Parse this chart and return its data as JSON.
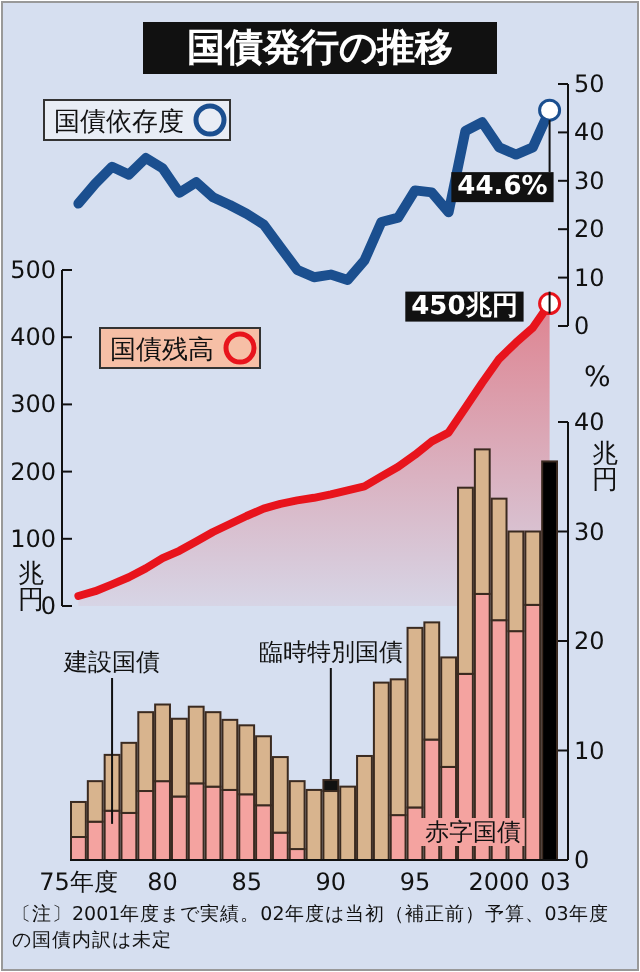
{
  "chart_data": [
    {
      "type": "line",
      "title": "国債発行の推移",
      "categories": [
        null,
        null,
        null,
        null,
        null,
        null,
        null,
        null,
        null,
        null,
        null,
        null,
        null,
        null,
        null,
        null,
        null,
        null,
        null,
        null,
        null,
        null,
        null,
        null,
        null,
        null,
        null,
        null,
        null
      ],
      "series": [
        {
          "name": "国債依存度",
          "color": "#1b4f8f",
          "values": [
            25.3,
            29.4,
            32.9,
            31.3,
            34.7,
            32.6,
            27.5,
            29.7,
            26.6,
            25.0,
            23.2,
            21.0,
            16.3,
            11.6,
            10.1,
            10.6,
            9.5,
            13.5,
            21.5,
            22.4,
            28.0,
            27.6,
            23.5,
            40.3,
            42.1,
            36.9,
            35.4,
            36.9,
            44.6
          ],
          "value_labels": [
            null,
            null,
            null,
            null,
            null,
            null,
            null,
            null,
            null,
            null,
            null,
            null,
            null,
            null,
            null,
            null,
            null,
            null,
            null,
            null,
            null,
            null,
            null,
            null,
            null,
            null,
            null,
            null,
            "44.6%"
          ]
        }
      ],
      "ylim": [
        0,
        50
      ],
      "yticks": [
        0,
        10,
        20,
        30,
        40,
        50
      ],
      "ylabel": "%",
      "tick_labels": "y",
      "legend": "top left"
    },
    {
      "type": "area",
      "categories": [
        null,
        null,
        null,
        null,
        null,
        null,
        null,
        null,
        null,
        null,
        null,
        null,
        null,
        null,
        null,
        null,
        null,
        null,
        null,
        null,
        null,
        null,
        null,
        null,
        null,
        null,
        null,
        null,
        null
      ],
      "series": [
        {
          "name": "国債残高",
          "color": "#e8141c",
          "values": [
            15,
            22,
            32,
            43,
            56,
            71,
            82,
            96,
            110,
            122,
            134,
            145,
            152,
            157,
            161,
            166,
            172,
            178,
            193,
            207,
            225,
            245,
            258,
            295,
            332,
            368,
            392,
            414,
            450
          ],
          "value_labels": [
            null,
            null,
            null,
            null,
            null,
            null,
            null,
            null,
            null,
            null,
            null,
            null,
            null,
            null,
            null,
            null,
            null,
            null,
            null,
            null,
            null,
            null,
            null,
            null,
            null,
            null,
            null,
            null,
            "450兆円"
          ]
        }
      ],
      "ylim": [
        0,
        500
      ],
      "yticks": [
        0,
        100,
        200,
        300,
        400,
        500
      ],
      "ylabel": "兆円",
      "tick_labels": "y",
      "legend": "top left"
    },
    {
      "type": "bar",
      "stacked": true,
      "categories": [
        "75年度",
        null,
        null,
        null,
        null,
        "80",
        null,
        null,
        null,
        null,
        "85",
        null,
        null,
        null,
        null,
        "90",
        null,
        null,
        null,
        null,
        "95",
        null,
        null,
        null,
        null,
        "2000",
        null,
        null,
        "03"
      ],
      "series": [
        {
          "name": "赤字国債",
          "color": "#f4a3a0",
          "values": [
            2.1,
            3.5,
            4.5,
            4.3,
            6.3,
            7.2,
            5.8,
            7.0,
            6.7,
            6.4,
            6.0,
            5.0,
            2.5,
            1.0,
            null,
            null,
            null,
            null,
            null,
            4.1,
            4.8,
            11.0,
            8.5,
            17.0,
            24.3,
            21.9,
            20.9,
            23.3,
            null
          ]
        },
        {
          "name": "建設国債",
          "color": "#d8b48e",
          "values": [
            3.2,
            3.7,
            5.1,
            6.4,
            7.2,
            7.0,
            7.1,
            7.0,
            6.8,
            6.4,
            6.3,
            6.3,
            6.9,
            6.2,
            6.4,
            6.3,
            6.7,
            9.5,
            16.2,
            12.4,
            16.4,
            10.7,
            10.0,
            17.0,
            13.2,
            11.1,
            9.1,
            6.7,
            null
          ]
        },
        {
          "name": "臨時特別国債",
          "color": "#111111",
          "values": [
            null,
            null,
            null,
            null,
            null,
            null,
            null,
            null,
            null,
            null,
            null,
            null,
            null,
            null,
            null,
            1.0,
            null,
            null,
            null,
            null,
            null,
            null,
            null,
            null,
            null,
            null,
            null,
            null,
            null
          ]
        },
        {
          "color": "#000000",
          "values": [
            null,
            null,
            null,
            null,
            null,
            null,
            null,
            null,
            null,
            null,
            null,
            null,
            null,
            null,
            null,
            null,
            null,
            null,
            null,
            null,
            null,
            null,
            null,
            null,
            null,
            null,
            null,
            null,
            36.4
          ]
        }
      ],
      "ylim": [
        0,
        40
      ],
      "yticks": [
        0,
        10,
        20,
        30,
        40
      ],
      "ylabel": "兆円",
      "annotations": [
        "〔注〕2001年度まで実績。02年度は当初（補正前）予算、03年度の国債内訳は未定"
      ]
    }
  ]
}
